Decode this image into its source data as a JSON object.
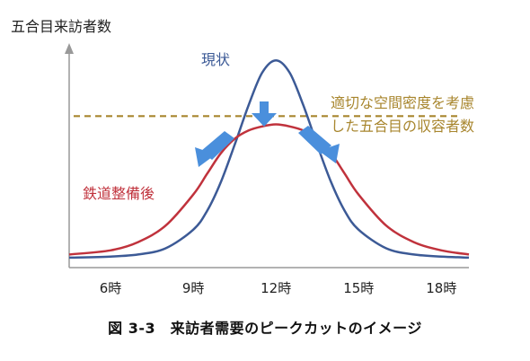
{
  "chart_data": {
    "type": "line",
    "ylabel": "五合目来訪者数",
    "xlabel": "",
    "x_ticks": [
      "6時",
      "9時",
      "12時",
      "15時",
      "18時"
    ],
    "xlim": [
      4.5,
      19
    ],
    "ylim": [
      0,
      100
    ],
    "series": [
      {
        "name": "現状",
        "color": "#3c5a96",
        "x": [
          4.5,
          6,
          7,
          8,
          9,
          9.5,
          10,
          10.5,
          11,
          11.5,
          12,
          12.5,
          13,
          13.5,
          14,
          14.5,
          15,
          16,
          17,
          18,
          19
        ],
        "y": [
          0.5,
          1,
          2,
          5,
          14,
          23,
          37,
          55,
          74,
          90,
          96,
          90,
          74,
          55,
          37,
          23,
          14,
          5,
          2,
          1,
          0.5
        ]
      },
      {
        "name": "鉄道整備後",
        "color": "#c0323c",
        "x": [
          4.5,
          6,
          7,
          8,
          9,
          9.5,
          10,
          10.5,
          11,
          11.5,
          12,
          12.5,
          13,
          13.5,
          14,
          14.5,
          15,
          16,
          17,
          18,
          19
        ],
        "y": [
          2,
          4,
          8,
          16,
          31,
          41,
          51,
          58,
          62,
          64,
          65,
          64,
          62,
          58,
          51,
          41,
          31,
          16,
          8,
          4,
          2
        ]
      }
    ],
    "reference_line": {
      "y": 69,
      "color": "#a8862e",
      "style": "dashed",
      "label_lines": [
        "適切な空間密度を考慮",
        "した五合目の収容者数"
      ]
    },
    "arrows": [
      {
        "direction": "down",
        "color": "#4a8fdc"
      },
      {
        "direction": "down-left",
        "color": "#4a8fdc"
      },
      {
        "direction": "down-right",
        "color": "#4a8fdc"
      }
    ],
    "grid": false
  },
  "caption": "図 3-3　来訪者需要のピークカットのイメージ"
}
